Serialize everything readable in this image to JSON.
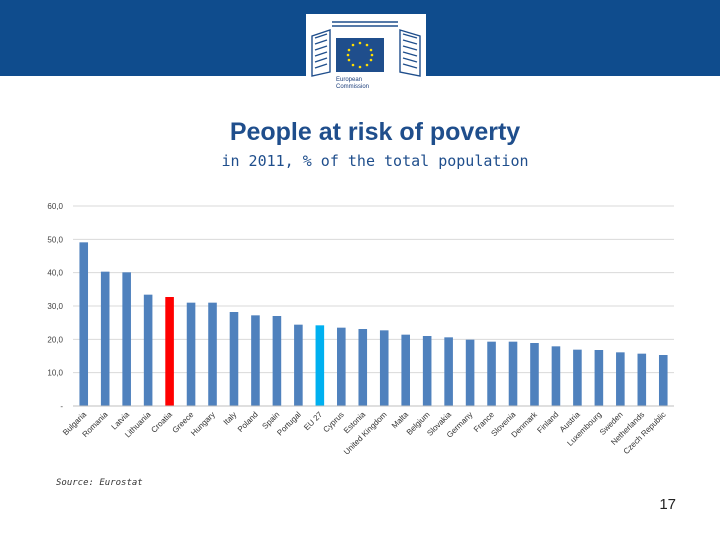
{
  "header": {
    "logo_text_line1": "European",
    "logo_text_line2": "Commission",
    "band_color": "#0f4c8d"
  },
  "slide": {
    "source": "Source: Eurostat",
    "page_number": "17"
  },
  "chart_data": {
    "type": "bar",
    "title": "People at risk of poverty",
    "subtitle": "in 2011, % of the total population",
    "categories": [
      "Bulgaria",
      "Romania",
      "Latvia",
      "Lithuania",
      "Croatia",
      "Greece",
      "Hungary",
      "Italy",
      "Poland",
      "Spain",
      "Portugal",
      "EU 27",
      "Cyprus",
      "Estonia",
      "United Kingdom",
      "Malta",
      "Belgium",
      "Slovakia",
      "Germany",
      "France",
      "Slovenia",
      "Denmark",
      "Finland",
      "Austria",
      "Luxembourg",
      "Sweden",
      "Netherlands",
      "Czech Republic"
    ],
    "values": [
      49.1,
      40.3,
      40.1,
      33.4,
      32.7,
      31.0,
      31.0,
      28.2,
      27.2,
      27.0,
      24.4,
      24.2,
      23.5,
      23.1,
      22.7,
      21.4,
      21.0,
      20.6,
      19.9,
      19.3,
      19.3,
      18.9,
      17.9,
      16.9,
      16.8,
      16.1,
      15.7,
      15.3
    ],
    "ylim": [
      0,
      60
    ],
    "yticks": [
      0,
      10,
      20,
      30,
      40,
      50,
      60
    ],
    "ytick_labels": [
      "-",
      "10,0",
      "20,0",
      "30,0",
      "40,0",
      "50,0",
      "60,0"
    ],
    "grid": true,
    "colors": {
      "default": "#4f81bd",
      "highlight": "#ff0000",
      "eu_average": "#00b0f0",
      "gridline": "#d9d9d9",
      "axis_text": "#404040"
    },
    "highlight_category": "Croatia",
    "average_category": "EU 27"
  }
}
